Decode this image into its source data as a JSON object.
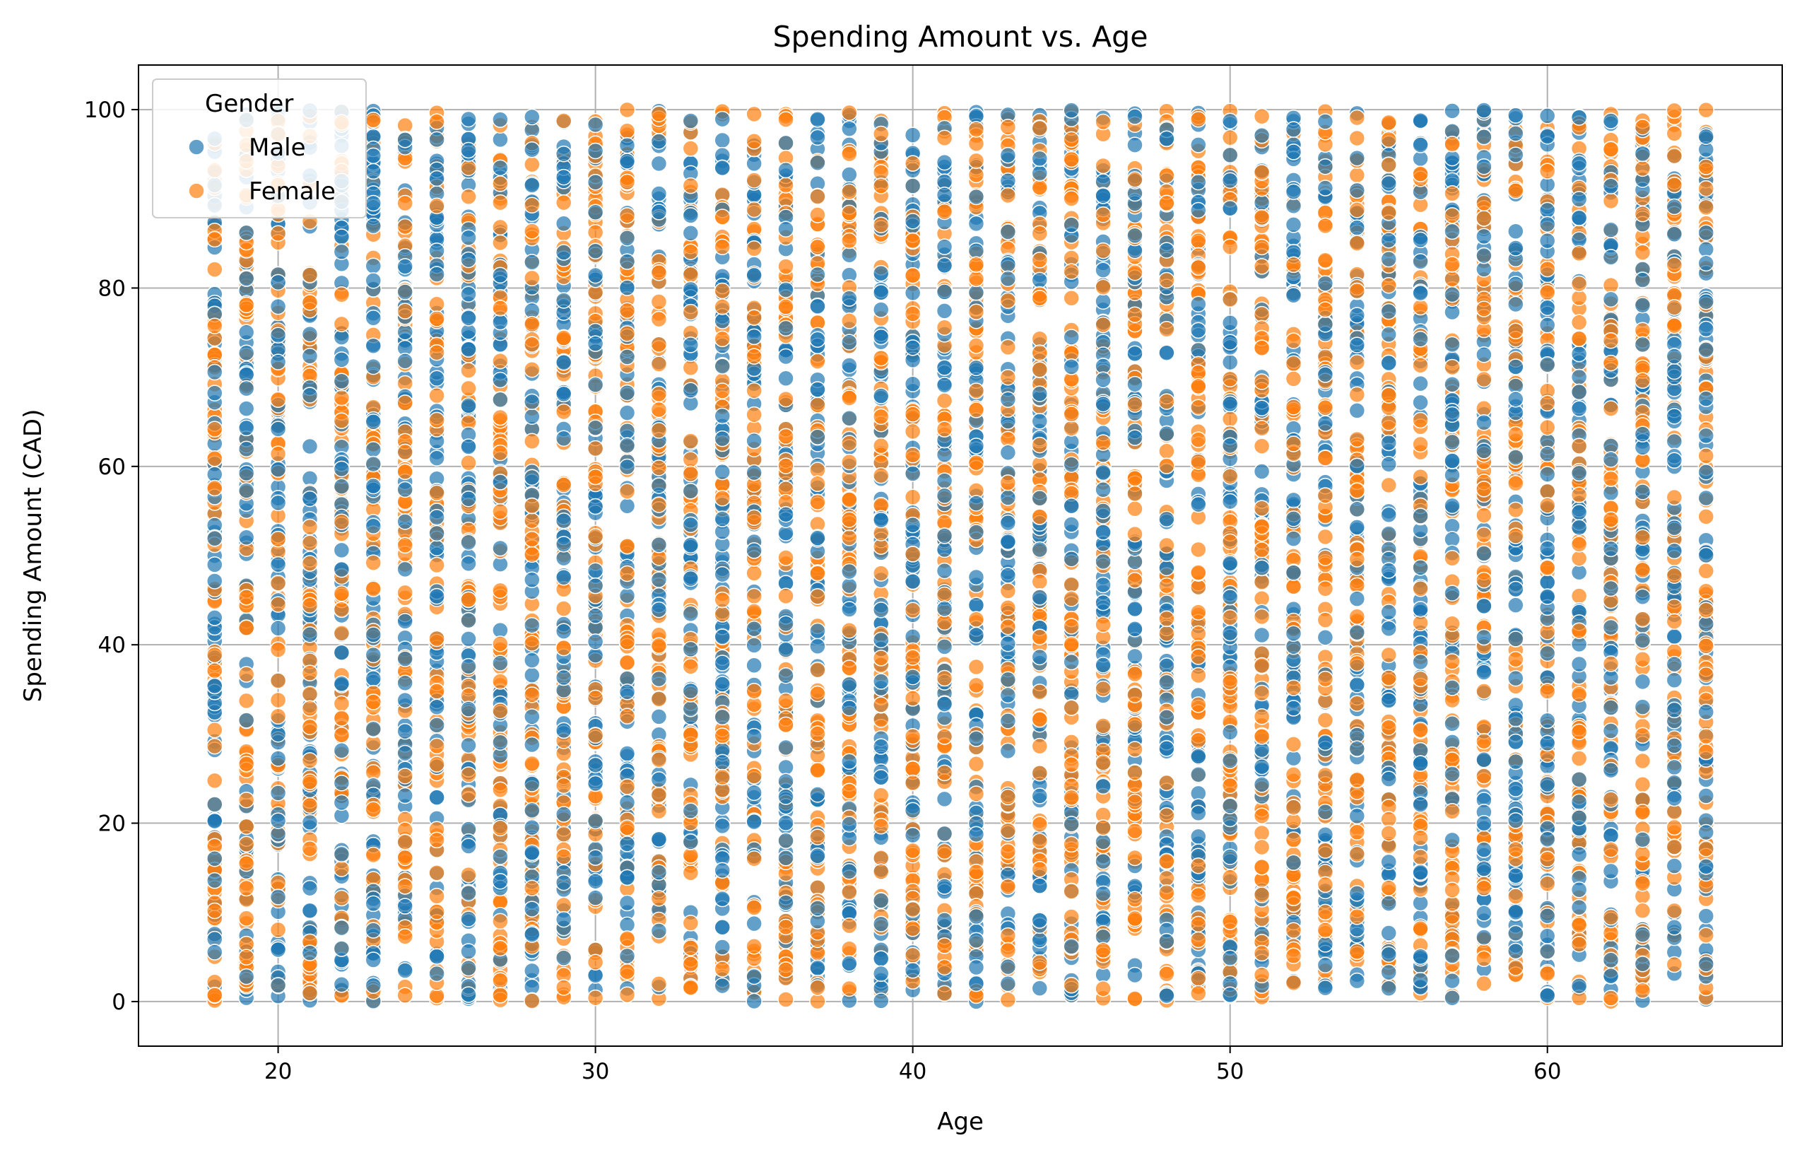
{
  "chart_data": {
    "type": "scatter",
    "title": "Spending Amount vs. Age",
    "xlabel": "Age",
    "ylabel": "Spending Amount (CAD)",
    "xlim": [
      15.6,
      67.4
    ],
    "ylim": [
      -5,
      105
    ],
    "x_ticks": [
      20,
      30,
      40,
      50,
      60
    ],
    "y_ticks": [
      0,
      20,
      40,
      60,
      80,
      100
    ],
    "grid": true,
    "legend": {
      "title": "Gender",
      "position": "top-left"
    },
    "x_values": "integer ages 18 through 65",
    "y_range": [
      0,
      100
    ],
    "series": [
      {
        "name": "Male",
        "color": "#1f77b4",
        "x_range": [
          18,
          65
        ],
        "y_range": [
          0,
          100
        ]
      },
      {
        "name": "Female",
        "color": "#ff7f0e",
        "x_range": [
          18,
          65
        ],
        "y_range": [
          0,
          100
        ]
      }
    ]
  }
}
